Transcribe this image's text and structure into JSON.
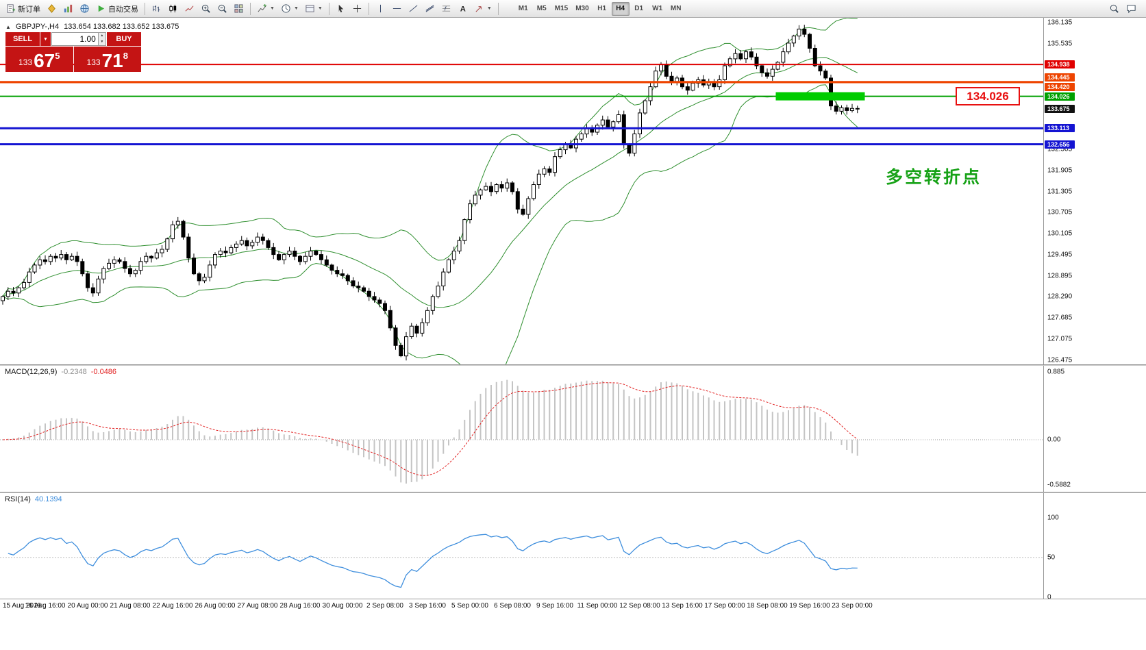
{
  "chart_header": {
    "symbol_period": "GBPJPY-,H4",
    "values": "133.654 133.682 133.652 133.675"
  },
  "trade_panel": {
    "sell_label": "SELL",
    "buy_label": "BUY",
    "volume": "1.00",
    "sell_price": {
      "small": "133",
      "big": "67",
      "sup": "5"
    },
    "buy_price": {
      "small": "133",
      "big": "71",
      "sup": "8"
    }
  },
  "toolbar": {
    "items": [
      {
        "name": "new-order-button",
        "icon": "doc",
        "label": "新订单"
      },
      {
        "name": "metaeditor-button",
        "icon": "gold"
      },
      {
        "name": "market-watch-button",
        "icon": "charts"
      },
      {
        "name": "community-button",
        "icon": "globe"
      },
      {
        "name": "autotrading-button",
        "icon": "play",
        "label": "自动交易"
      },
      {
        "sep": true
      },
      {
        "name": "bar-chart-button",
        "icon": "bars"
      },
      {
        "name": "candlestick-chart-button",
        "icon": "candle"
      },
      {
        "name": "line-chart-button",
        "icon": "line"
      },
      {
        "name": "zoom-in-button",
        "icon": "zoomin"
      },
      {
        "name": "zoom-out-button",
        "icon": "zoomout"
      },
      {
        "name": "tile-windows-button",
        "icon": "tile"
      },
      {
        "sep": true
      },
      {
        "name": "indicators-button",
        "icon": "indicator",
        "caret": true
      },
      {
        "name": "periods-button",
        "icon": "clock",
        "caret": true
      },
      {
        "name": "templates-button",
        "icon": "template",
        "caret": true
      },
      {
        "sep": true
      },
      {
        "name": "cursor-button",
        "icon": "cursor"
      },
      {
        "name": "crosshair-button",
        "icon": "cross"
      },
      {
        "sep": true
      },
      {
        "name": "vertical-line-button",
        "icon": "vline"
      },
      {
        "name": "horizontal-line-button",
        "icon": "hline"
      },
      {
        "name": "trendline-button",
        "icon": "trend"
      },
      {
        "name": "equidistant-channel-button",
        "icon": "channel"
      },
      {
        "name": "fibonacci-button",
        "icon": "fibo"
      },
      {
        "name": "text-button",
        "icon": "textA"
      },
      {
        "name": "arrow-label-button",
        "icon": "arrowlbl",
        "caret": true
      },
      {
        "sep": true
      }
    ],
    "timeframes": [
      "M1",
      "M5",
      "M15",
      "M30",
      "H1",
      "H4",
      "D1",
      "W1",
      "MN"
    ],
    "active_timeframe": "H4",
    "right_items": [
      {
        "name": "search-button",
        "icon": "search"
      },
      {
        "name": "chat-button",
        "icon": "chat"
      }
    ]
  },
  "chart_data": {
    "type": "candlestick",
    "symbol": "GBPJPY-",
    "timeframe": "H4",
    "ohlc_header": {
      "open": "133.654",
      "high": "133.682",
      "low": "133.652",
      "close": "133.675"
    },
    "y_axis": {
      "min": 126.475,
      "max": 136.135,
      "labels": [
        "136.135",
        "135.535",
        "132.505",
        "131.905",
        "131.305",
        "130.705",
        "130.105",
        "129.495",
        "128.895",
        "128.290",
        "127.685",
        "127.075",
        "126.475"
      ]
    },
    "closes": [
      128.3,
      128.45,
      128.4,
      128.55,
      128.7,
      129.0,
      129.2,
      129.35,
      129.3,
      129.45,
      129.4,
      129.5,
      129.35,
      129.45,
      129.3,
      128.95,
      128.55,
      128.4,
      128.8,
      129.1,
      129.25,
      129.35,
      129.3,
      129.1,
      128.95,
      129.05,
      129.3,
      129.45,
      129.4,
      129.55,
      129.65,
      129.95,
      130.35,
      130.45,
      130.0,
      129.4,
      128.95,
      128.75,
      128.85,
      129.2,
      129.5,
      129.6,
      129.55,
      129.7,
      129.8,
      129.9,
      129.75,
      129.85,
      130.0,
      129.9,
      129.7,
      129.5,
      129.35,
      129.5,
      129.6,
      129.45,
      129.3,
      129.45,
      129.6,
      129.5,
      129.35,
      129.2,
      129.05,
      128.95,
      128.9,
      128.75,
      128.6,
      128.55,
      128.45,
      128.3,
      128.2,
      128.1,
      127.9,
      127.4,
      126.9,
      126.6,
      127.15,
      127.45,
      127.25,
      127.55,
      127.9,
      128.3,
      128.6,
      129.0,
      129.35,
      129.6,
      129.9,
      130.5,
      130.95,
      131.2,
      131.35,
      131.45,
      131.3,
      131.5,
      131.4,
      131.55,
      131.3,
      130.8,
      130.65,
      131.1,
      131.5,
      131.8,
      131.95,
      131.85,
      132.3,
      132.5,
      132.65,
      132.55,
      132.8,
      132.95,
      133.1,
      133.0,
      133.2,
      133.35,
      133.15,
      133.3,
      133.5,
      132.65,
      132.4,
      132.95,
      133.55,
      133.9,
      134.3,
      134.75,
      134.95,
      134.6,
      134.45,
      134.55,
      134.3,
      134.2,
      134.4,
      134.5,
      134.35,
      134.45,
      134.3,
      134.5,
      134.9,
      135.1,
      135.25,
      135.1,
      135.3,
      135.15,
      134.9,
      134.7,
      134.6,
      134.8,
      135.0,
      135.3,
      135.55,
      135.75,
      135.95,
      135.8,
      135.4,
      134.9,
      134.75,
      134.55,
      133.75,
      133.6,
      133.7,
      133.62,
      133.68,
      133.675
    ],
    "bollinger": {
      "period": 20,
      "deviation": 2,
      "color": "#2f8f2f"
    },
    "levels": [
      {
        "price": 134.938,
        "color": "#e00000",
        "width": 2,
        "tag": "134.938",
        "tag_dy": 0
      },
      {
        "price": 134.445,
        "color": "#ee4400",
        "width": 2,
        "tag": "134.445",
        "tag_dy": -6
      },
      {
        "price": 134.42,
        "color": "#ee4400",
        "width": 2,
        "tag": "134.420",
        "tag_dy": 6
      },
      {
        "price": 134.026,
        "color": "#00a000",
        "width": 2,
        "tag": "134.026",
        "tag_dy": 0
      },
      {
        "price": 133.113,
        "color": "#1414d2",
        "width": 3,
        "tag": "133.113",
        "tag_dy": 0
      },
      {
        "price": 132.656,
        "color": "#1414d2",
        "width": 3,
        "tag": "132.656",
        "tag_dy": 0
      }
    ],
    "current_price": {
      "value": "133.675",
      "price": 133.675,
      "color": "#111111"
    },
    "highlight_rect": {
      "price": 134.026,
      "from_bar": 146,
      "to_bar": 162,
      "color": "#00cc00",
      "half_height": 6
    },
    "price_note": {
      "text": "134.026",
      "color": "#e81010"
    },
    "annotation": {
      "text": "多空转折点",
      "color": "#17a217"
    },
    "macd": {
      "name": "MACD(12,26,9)",
      "main_value": "-0.2348",
      "signal_value": "-0.0486",
      "fast": 12,
      "slow": 26,
      "signal": 9,
      "scale_labels": [
        "0.885",
        "0.00",
        "-0.5882"
      ],
      "histogram_color": "#c4c4c4",
      "signal_color": "#e22222"
    },
    "rsi": {
      "name": "RSI(14)",
      "value": "40.1394",
      "period": 14,
      "scale_labels": [
        "100",
        "50",
        "0"
      ],
      "levels": [
        50
      ],
      "color": "#3e8edd"
    },
    "x_axis": [
      "15 Aug 2019",
      "16 Aug 16:00",
      "20 Aug 00:00",
      "21 Aug 08:00",
      "22 Aug 16:00",
      "26 Aug 00:00",
      "27 Aug 08:00",
      "28 Aug 16:00",
      "30 Aug 00:00",
      "2 Sep 08:00",
      "3 Sep 16:00",
      "5 Sep 00:00",
      "6 Sep 08:00",
      "9 Sep 16:00",
      "11 Sep 00:00",
      "12 Sep 08:00",
      "13 Sep 16:00",
      "17 Sep 00:00",
      "18 Sep 08:00",
      "19 Sep 16:00",
      "23 Sep 00:00"
    ]
  }
}
